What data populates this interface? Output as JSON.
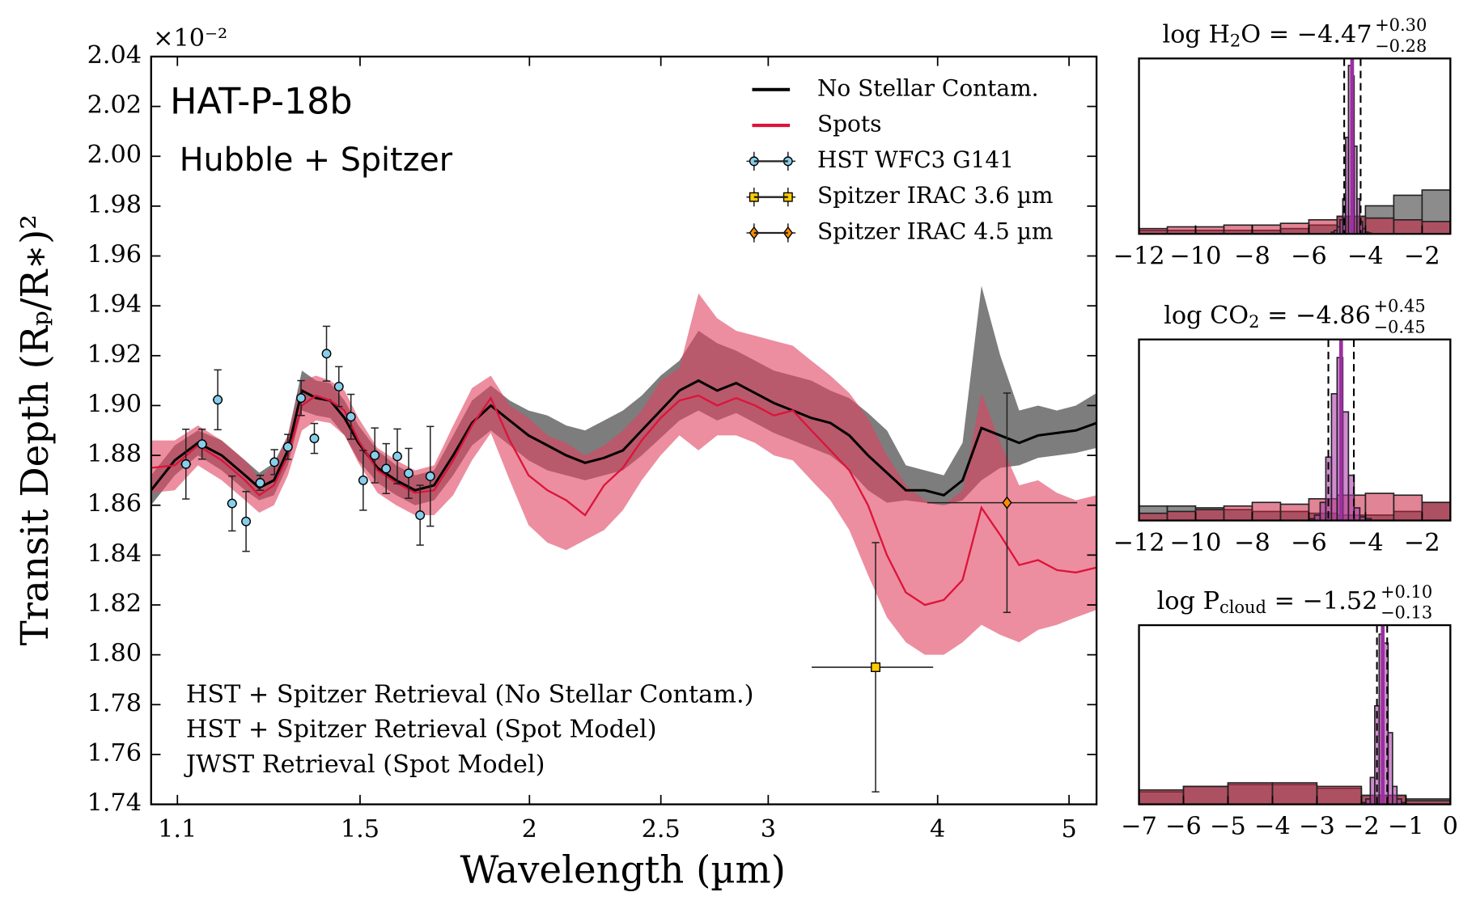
{
  "chart_data": [
    {
      "type": "line",
      "annotations": [
        "HAT-P-18b",
        "Hubble + Spitzer"
      ],
      "notes": [
        {
          "text": "HST + Spitzer Retrieval (No Stellar Contam.)",
          "color": "#000000"
        },
        {
          "text": "HST + Spitzer Retrieval (Spot Model)",
          "color": "#dc143c"
        },
        {
          "text": "JWST Retrieval (Spot Model)",
          "color": "#800080"
        }
      ],
      "xlabel": "Wavelength (µm)",
      "ylabel": "Transit Depth (Rₚ/R∗)²",
      "y_offset_label": "×10⁻²",
      "log_x": true,
      "xlim": [
        1.052,
        5.239
      ],
      "xticks": [
        1.1,
        1.5,
        2,
        2.5,
        3,
        4,
        5
      ],
      "ylim": [
        1.74,
        2.04
      ],
      "yticks": [
        1.74,
        1.76,
        1.78,
        {
          "value": 1.8,
          "label": "1.80"
        },
        1.82,
        1.84,
        1.86,
        1.88,
        {
          "value": 1.9,
          "label": "1.90"
        },
        1.92,
        1.94,
        1.96,
        1.98,
        {
          "value": 2,
          "label": "2.00"
        },
        2.02,
        2.04
      ],
      "legend": "upper right",
      "x": [
        1.052,
        1.095,
        1.139,
        1.186,
        1.234,
        1.264,
        1.296,
        1.327,
        1.359,
        1.392,
        1.426,
        1.461,
        1.496,
        1.545,
        1.595,
        1.647,
        1.701,
        1.757,
        1.814,
        1.873,
        1.934,
        1.997,
        2.062,
        2.129,
        2.198,
        2.27,
        2.344,
        2.42,
        2.499,
        2.58,
        2.665,
        2.751,
        2.841,
        2.934,
        3.029,
        3.128,
        3.228,
        3.334,
        3.443,
        3.554,
        3.67,
        3.79,
        3.914,
        4.042,
        4.173,
        4.309,
        4.449,
        4.594,
        4.744,
        4.898,
        5.058,
        5.239
      ],
      "series": [
        {
          "name": "No Stellar Contam.",
          "color": "#000000",
          "band_color": "#666666",
          "values": [
            1.866,
            1.878,
            1.885,
            1.88,
            1.872,
            1.867,
            1.87,
            1.882,
            1.906,
            1.903,
            1.902,
            1.895,
            1.885,
            1.875,
            1.87,
            1.866,
            1.868,
            1.88,
            1.893,
            1.9,
            1.894,
            1.888,
            1.884,
            1.88,
            1.877,
            1.879,
            1.882,
            1.89,
            1.898,
            1.906,
            1.91,
            1.906,
            1.909,
            1.905,
            1.901,
            1.898,
            1.895,
            1.893,
            1.888,
            1.88,
            1.873,
            1.866,
            1.866,
            1.864,
            1.87,
            1.891,
            1.888,
            1.885,
            1.888,
            1.889,
            1.89,
            1.893
          ],
          "band_lower": [
            1.86,
            1.872,
            1.88,
            1.874,
            1.866,
            1.862,
            1.864,
            1.876,
            1.898,
            1.896,
            1.895,
            1.888,
            1.878,
            1.869,
            1.864,
            1.86,
            1.862,
            1.872,
            1.884,
            1.89,
            1.884,
            1.878,
            1.874,
            1.872,
            1.87,
            1.872,
            1.874,
            1.88,
            1.887,
            1.894,
            1.898,
            1.894,
            1.897,
            1.893,
            1.889,
            1.886,
            1.883,
            1.88,
            1.874,
            1.866,
            1.861,
            1.862,
            1.861,
            1.86,
            1.862,
            1.87,
            1.875,
            1.876,
            1.879,
            1.88,
            1.881,
            1.883
          ],
          "band_upper": [
            1.872,
            1.884,
            1.89,
            1.886,
            1.878,
            1.873,
            1.877,
            1.888,
            1.914,
            1.91,
            1.909,
            1.902,
            1.892,
            1.882,
            1.876,
            1.872,
            1.874,
            1.888,
            1.902,
            1.908,
            1.902,
            1.898,
            1.896,
            1.892,
            1.89,
            1.894,
            1.898,
            1.904,
            1.912,
            1.918,
            1.93,
            1.925,
            1.922,
            1.918,
            1.914,
            1.912,
            1.91,
            1.906,
            1.903,
            1.897,
            1.89,
            1.876,
            1.874,
            1.872,
            1.885,
            1.948,
            1.92,
            1.898,
            1.9,
            1.898,
            1.9,
            1.905
          ]
        },
        {
          "name": "Spots",
          "color": "#dc143c",
          "band_color": "#e0435f",
          "values": [
            1.875,
            1.876,
            1.884,
            1.878,
            1.87,
            1.864,
            1.868,
            1.88,
            1.9,
            1.904,
            1.902,
            1.898,
            1.886,
            1.874,
            1.869,
            1.865,
            1.866,
            1.878,
            1.892,
            1.903,
            1.886,
            1.872,
            1.866,
            1.862,
            1.856,
            1.868,
            1.875,
            1.886,
            1.895,
            1.902,
            1.904,
            1.9,
            1.903,
            1.9,
            1.896,
            1.898,
            1.89,
            1.882,
            1.874,
            1.86,
            1.84,
            1.825,
            1.82,
            1.822,
            1.83,
            1.859,
            1.848,
            1.836,
            1.838,
            1.834,
            1.833,
            1.835
          ],
          "band_lower": [
            1.865,
            1.866,
            1.876,
            1.87,
            1.862,
            1.857,
            1.86,
            1.872,
            1.89,
            1.894,
            1.893,
            1.888,
            1.877,
            1.865,
            1.86,
            1.856,
            1.856,
            1.864,
            1.878,
            1.889,
            1.87,
            1.852,
            1.845,
            1.842,
            1.846,
            1.85,
            1.858,
            1.87,
            1.88,
            1.888,
            1.882,
            1.888,
            1.888,
            1.885,
            1.88,
            1.878,
            1.87,
            1.862,
            1.85,
            1.832,
            1.815,
            1.805,
            1.8,
            1.8,
            1.805,
            1.812,
            1.808,
            1.805,
            1.81,
            1.812,
            1.815,
            1.818
          ],
          "band_upper": [
            1.886,
            1.886,
            1.892,
            1.886,
            1.878,
            1.871,
            1.876,
            1.888,
            1.91,
            1.912,
            1.91,
            1.906,
            1.895,
            1.883,
            1.878,
            1.874,
            1.876,
            1.892,
            1.907,
            1.912,
            1.9,
            1.895,
            1.888,
            1.885,
            1.88,
            1.884,
            1.89,
            1.898,
            1.91,
            1.915,
            1.945,
            1.935,
            1.93,
            1.928,
            1.926,
            1.924,
            1.918,
            1.912,
            1.905,
            1.895,
            1.88,
            1.868,
            1.862,
            1.86,
            1.866,
            1.905,
            1.885,
            1.868,
            1.87,
            1.865,
            1.862,
            1.864
          ]
        }
      ],
      "errorbars": [
        {
          "name": "HST WFC3 G141",
          "color": "#87ceeb",
          "marker": "circle",
          "x": [
            1.116,
            1.147,
            1.178,
            1.207,
            1.236,
            1.266,
            1.297,
            1.327,
            1.357,
            1.388,
            1.417,
            1.447,
            1.477,
            1.508,
            1.538,
            1.568,
            1.598,
            1.629,
            1.661,
            1.69
          ],
          "values": [
            1.8765,
            1.8845,
            1.9023,
            1.8607,
            1.8535,
            1.869,
            1.8773,
            1.8834,
            1.903,
            1.8868,
            1.9208,
            1.9076,
            1.8955,
            1.87,
            1.88,
            1.8747,
            1.8796,
            1.8728,
            1.856,
            1.8716
          ],
          "yerr": [
            0.014,
            0.006,
            0.012,
            0.011,
            0.012,
            0.003,
            0.005,
            0.005,
            0.007,
            0.006,
            0.011,
            0.008,
            0.009,
            0.012,
            0.011,
            0.01,
            0.011,
            0.01,
            0.012,
            0.02
          ],
          "xerr": [
            0.01,
            0.01,
            0.01,
            0.01,
            0.01,
            0.01,
            0.01,
            0.01,
            0.01,
            0.01,
            0.01,
            0.01,
            0.01,
            0.01,
            0.01,
            0.01,
            0.01,
            0.01,
            0.01,
            0.01
          ]
        },
        {
          "name": "Spitzer IRAC 3.6 µm",
          "color": "#ffcc00",
          "marker": "square",
          "x": [
            3.6
          ],
          "values": [
            1.795
          ],
          "yerr": [
            0.05
          ],
          "xerr": [
            0.37
          ]
        },
        {
          "name": "Spitzer IRAC 4.5 µm",
          "color": "#ff8c00",
          "marker": "diamond",
          "x": [
            4.5
          ],
          "values": [
            1.861
          ],
          "yerr": [
            0.044
          ],
          "xerr": [
            0.57
          ]
        }
      ]
    },
    {
      "type": "histogram",
      "name": "log H",
      "name_sub": "2",
      "name_rest": "O = −4.47",
      "upper": "+0.30",
      "lower": "−0.28",
      "median": -4.47,
      "ci": [
        -4.75,
        -4.17
      ],
      "median_color": "#9b30a0",
      "xlim": [
        -12,
        -1
      ],
      "xticks": [
        {
          "value": -12,
          "label": "−12"
        },
        {
          "value": -10,
          "label": "−10"
        },
        {
          "value": -8,
          "label": "−8"
        },
        {
          "value": -6,
          "label": "−6"
        },
        {
          "value": -4,
          "label": "−4"
        },
        {
          "value": -2,
          "label": "−2"
        }
      ],
      "series": [
        {
          "color": "#666666",
          "bins": [
            -12,
            -11,
            -10,
            -9,
            -8,
            -7,
            -6,
            -5,
            -4,
            -3,
            -2,
            -1
          ],
          "values": [
            0.02,
            0.02,
            0.02,
            0.02,
            0.02,
            0.03,
            0.05,
            0.1,
            0.16,
            0.22,
            0.25
          ]
        },
        {
          "color": "#c8203f",
          "bins": [
            -12,
            -11,
            -10,
            -9,
            -8,
            -7,
            -6,
            -5,
            -4,
            -3,
            -2,
            -1
          ],
          "values": [
            0.03,
            0.04,
            0.04,
            0.05,
            0.05,
            0.06,
            0.08,
            0.1,
            0.09,
            0.08,
            0.07
          ]
        },
        {
          "color": "#b040b0",
          "bins": [
            -5.2,
            -5.1,
            -5.0,
            -4.9,
            -4.8,
            -4.7,
            -4.6,
            -4.5,
            -4.4,
            -4.3,
            -4.2,
            -4.1,
            -4.0,
            -3.9,
            -3.8
          ],
          "values": [
            0.01,
            0.02,
            0.04,
            0.08,
            0.2,
            0.55,
            0.96,
            0.9,
            0.5,
            0.2,
            0.07,
            0.03,
            0.01,
            0.005
          ]
        }
      ]
    },
    {
      "type": "histogram",
      "name": "log CO",
      "name_sub": "2",
      "name_rest": " = −4.86",
      "upper": "+0.45",
      "lower": "−0.45",
      "median": -4.86,
      "ci": [
        -5.31,
        -4.41
      ],
      "median_color": "#9b30a0",
      "xlim": [
        -12,
        -1
      ],
      "xticks": [
        {
          "value": -12,
          "label": "−12"
        },
        {
          "value": -10,
          "label": "−10"
        },
        {
          "value": -8,
          "label": "−8"
        },
        {
          "value": -6,
          "label": "−6"
        },
        {
          "value": -4,
          "label": "−4"
        },
        {
          "value": -2,
          "label": "−2"
        }
      ],
      "series": [
        {
          "color": "#666666",
          "bins": [
            -12,
            -11,
            -10,
            -9,
            -8,
            -7,
            -6,
            -5,
            -4,
            -3,
            -2,
            -1
          ],
          "values": [
            0.08,
            0.08,
            0.07,
            0.06,
            0.05,
            0.05,
            0.04,
            0.03,
            0.03,
            0.05,
            0.1
          ]
        },
        {
          "color": "#c8203f",
          "bins": [
            -12,
            -11,
            -10,
            -9,
            -8,
            -7,
            -6,
            -5,
            -4,
            -3,
            -2,
            -1
          ],
          "values": [
            0.04,
            0.05,
            0.06,
            0.08,
            0.1,
            0.09,
            0.12,
            0.14,
            0.15,
            0.14,
            0.1
          ]
        },
        {
          "color": "#b040b0",
          "bins": [
            -6.0,
            -5.8,
            -5.6,
            -5.4,
            -5.2,
            -5.0,
            -4.8,
            -4.6,
            -4.4,
            -4.2,
            -4.0,
            -3.8
          ],
          "values": [
            0.01,
            0.03,
            0.1,
            0.35,
            0.7,
            0.9,
            0.6,
            0.25,
            0.07,
            0.02,
            0.01
          ]
        }
      ]
    },
    {
      "type": "histogram",
      "name": "log P",
      "name_sub": "cloud",
      "name_rest": " = −1.52",
      "upper": "+0.10",
      "lower": "−0.13",
      "median": -1.52,
      "ci": [
        -1.65,
        -1.42
      ],
      "median_color": "#9b30a0",
      "xlim": [
        -7,
        0
      ],
      "xticks": [
        {
          "value": -7,
          "label": "−7"
        },
        {
          "value": -6,
          "label": "−6"
        },
        {
          "value": -5,
          "label": "−5"
        },
        {
          "value": -4,
          "label": "−4"
        },
        {
          "value": -3,
          "label": "−3"
        },
        {
          "value": -2,
          "label": "−2"
        },
        {
          "value": -1,
          "label": "−1"
        },
        0
      ],
      "series": [
        {
          "color": "#666666",
          "bins": [
            -7,
            -6,
            -5,
            -4,
            -3,
            -2,
            -1,
            0
          ],
          "values": [
            0.07,
            0.1,
            0.11,
            0.11,
            0.09,
            0.05,
            0.03
          ]
        },
        {
          "color": "#c8203f",
          "bins": [
            -7,
            -6,
            -5,
            -4,
            -3,
            -2,
            -1,
            0
          ],
          "values": [
            0.08,
            0.1,
            0.12,
            0.12,
            0.1,
            0.05,
            0.02
          ]
        },
        {
          "color": "#b040b0",
          "bins": [
            -2.0,
            -1.9,
            -1.8,
            -1.7,
            -1.6,
            -1.5,
            -1.4,
            -1.3,
            -1.2,
            -1.1,
            -1.0
          ],
          "values": [
            0.01,
            0.03,
            0.15,
            0.55,
            0.95,
            0.9,
            0.4,
            0.1,
            0.03,
            0.01
          ]
        }
      ]
    }
  ]
}
